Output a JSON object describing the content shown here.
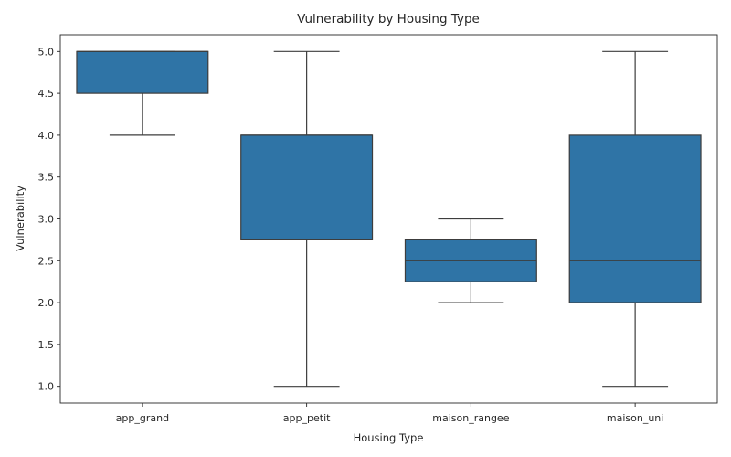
{
  "chart_data": {
    "type": "box",
    "title": "Vulnerability by Housing Type",
    "xlabel": "Housing Type",
    "ylabel": "Vulnerability",
    "ylim": [
      0.8,
      5.2
    ],
    "yticks": [
      "1.0",
      "1.5",
      "2.0",
      "2.5",
      "3.0",
      "3.5",
      "4.0",
      "4.5",
      "5.0"
    ],
    "box_color": "#2f74a6",
    "line_color": "#3d3d3d",
    "grid": false,
    "boxes": [
      {
        "category": "app_grand",
        "whisker_low": 4.0,
        "q1": 4.5,
        "median": 5.0,
        "q3": 5.0,
        "whisker_high": 5.0
      },
      {
        "category": "app_petit",
        "whisker_low": 1.0,
        "q1": 2.75,
        "median": 4.0,
        "q3": 4.0,
        "whisker_high": 5.0
      },
      {
        "category": "maison_rangee",
        "whisker_low": 2.0,
        "q1": 2.25,
        "median": 2.5,
        "q3": 2.75,
        "whisker_high": 3.0
      },
      {
        "category": "maison_uni",
        "whisker_low": 1.0,
        "q1": 2.0,
        "median": 2.5,
        "q3": 4.0,
        "whisker_high": 5.0
      }
    ]
  }
}
